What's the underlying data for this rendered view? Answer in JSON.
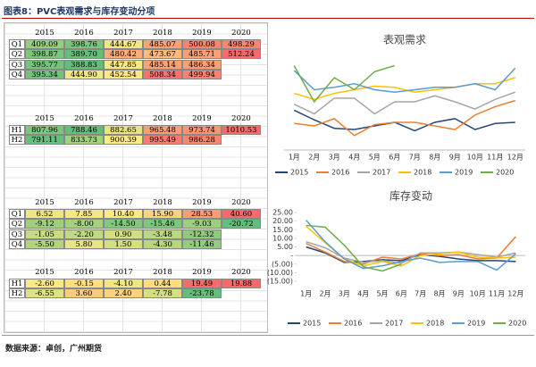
{
  "header": {
    "title": "图表8：PVC表观需求与库存变动分项"
  },
  "tables": [
    {
      "columns": [
        "2015",
        "2016",
        "2017",
        "2018",
        "2019",
        "2020"
      ],
      "rows": [
        {
          "label": "Q1",
          "cells": [
            "409.09",
            "398.76",
            "444.67",
            "485.07",
            "500.08",
            "498.29"
          ]
        },
        {
          "label": "Q2",
          "cells": [
            "398.87",
            "389.70",
            "480.42",
            "473.67",
            "485.71",
            "512.24"
          ]
        },
        {
          "label": "Q3",
          "cells": [
            "395.77",
            "388.83",
            "447.85",
            "485.14",
            "486.34"
          ]
        },
        {
          "label": "Q4",
          "cells": [
            "395.34",
            "444.90",
            "452.54",
            "508.34",
            "499.94"
          ]
        }
      ]
    },
    {
      "columns": [
        "2015",
        "2016",
        "2017",
        "2018",
        "2019",
        "2020"
      ],
      "rows": [
        {
          "label": "H1",
          "cells": [
            "807.96",
            "788.46",
            "882.65",
            "965.48",
            "973.74",
            "1010.53"
          ]
        },
        {
          "label": "H2",
          "cells": [
            "791.11",
            "833.73",
            "900.39",
            "995.49",
            "986.28"
          ]
        }
      ]
    },
    {
      "columns": [
        "2015",
        "2016",
        "2017",
        "2018",
        "2019",
        "2020"
      ],
      "rows": [
        {
          "label": "Q1",
          "cells": [
            "6.52",
            "7.85",
            "10.40",
            "15.90",
            "28.53",
            "40.60"
          ]
        },
        {
          "label": "Q2",
          "cells": [
            "-9.12",
            "-8.00",
            "-14.50",
            "-15.46",
            "-9.03",
            "-20.72"
          ]
        },
        {
          "label": "Q3",
          "cells": [
            "-1.05",
            "-2.20",
            "0.90",
            "-3.48",
            "-12.32"
          ]
        },
        {
          "label": "Q4",
          "cells": [
            "-5.50",
            "5.80",
            "1.50",
            "-4.30",
            "-11.46"
          ]
        }
      ]
    },
    {
      "columns": [
        "2015",
        "2016",
        "2017",
        "2018",
        "2019",
        "2020"
      ],
      "rows": [
        {
          "label": "H1",
          "cells": [
            "-2.60",
            "-0.15",
            "-4.10",
            "0.44",
            "19.49",
            "19.88"
          ]
        },
        {
          "label": "H2",
          "cells": [
            "-6.55",
            "3.60",
            "2.40",
            "-7.78",
            "-23.78"
          ]
        }
      ]
    }
  ],
  "chart_data": [
    {
      "type": "line",
      "title": "表观需求",
      "categories": [
        "1月",
        "2月",
        "3月",
        "4月",
        "5月",
        "6月",
        "7月",
        "8月",
        "9月",
        "10月",
        "11月",
        "12月"
      ],
      "ylim": [
        110,
        190
      ],
      "series": [
        {
          "name": "2015",
          "color": "#264478",
          "values": [
            143,
            135,
            128,
            127,
            130,
            133,
            126,
            133,
            136,
            127,
            132,
            133
          ]
        },
        {
          "name": "2016",
          "color": "#ed7d31",
          "values": [
            132,
            130,
            136,
            122,
            131,
            133,
            133,
            130,
            127,
            139,
            146,
            151
          ]
        },
        {
          "name": "2017",
          "color": "#a5a5a5",
          "values": [
            148,
            140,
            153,
            153,
            140,
            150,
            150,
            155,
            150,
            144,
            152,
            158
          ]
        },
        {
          "name": "2018",
          "color": "#ffc000",
          "values": [
            157,
            152,
            157,
            160,
            163,
            162,
            158,
            160,
            162,
            165,
            165,
            170
          ]
        },
        {
          "name": "2019",
          "color": "#5b9bd5",
          "values": [
            176,
            160,
            162,
            165,
            160,
            158,
            160,
            162,
            162,
            165,
            160,
            178
          ]
        },
        {
          "name": "2020",
          "color": "#70ad47",
          "values": [
            180,
            150,
            170,
            160,
            175,
            180,
            null,
            null,
            null,
            null,
            null,
            null
          ]
        }
      ]
    },
    {
      "type": "line",
      "title": "库存变动",
      "categories": [
        "1月",
        "2月",
        "3月",
        "4月",
        "5月",
        "6月",
        "7月",
        "8月",
        "9月",
        "10月",
        "11月",
        "12月"
      ],
      "ylim": [
        -15,
        25
      ],
      "yticks": [
        {
          "value": 25,
          "label": "25.00"
        },
        {
          "value": 20,
          "label": "20.00"
        },
        {
          "value": 15,
          "label": "15.00"
        },
        {
          "value": 10,
          "label": "10.00"
        },
        {
          "value": 5,
          "label": "5.00"
        },
        {
          "value": 0,
          "label": "-"
        },
        {
          "value": -5,
          "label": "(5.00)"
        },
        {
          "value": -10,
          "label": "(10.00)"
        },
        {
          "value": -15,
          "label": "(15.00)"
        }
      ],
      "series": [
        {
          "name": "2015",
          "color": "#264478",
          "values": [
            5,
            1.5,
            -4,
            -3.5,
            -2.5,
            -3,
            0.5,
            -0.5,
            -2,
            -3,
            -3,
            -3.5
          ]
        },
        {
          "name": "2016",
          "color": "#ed7d31",
          "values": [
            7,
            2,
            -3.5,
            -5,
            -1,
            -2,
            1,
            0,
            0.5,
            -2,
            -1.5,
            11
          ]
        },
        {
          "name": "2017",
          "color": "#a5a5a5",
          "values": [
            8,
            4.5,
            -1.5,
            -4,
            -3,
            -4.5,
            1.5,
            1.5,
            2,
            0.5,
            -1,
            1.5
          ]
        },
        {
          "name": "2018",
          "color": "#ffc000",
          "values": [
            17,
            7.5,
            -2,
            -6,
            -3.5,
            -6,
            0,
            1,
            2,
            -1,
            -1.5,
            -1
          ]
        },
        {
          "name": "2019",
          "color": "#5b9bd5",
          "values": [
            20.5,
            8,
            -2,
            -7.5,
            -6,
            -3.5,
            -1.5,
            -4,
            -3.5,
            -3.5,
            -8.5,
            1
          ]
        },
        {
          "name": "2020",
          "color": "#70ad47",
          "values": [
            17.5,
            16.5,
            6,
            -6.5,
            -9,
            -5,
            null,
            null,
            null,
            null,
            null,
            null
          ]
        }
      ]
    }
  ],
  "source": "数据来源：卓创，广州期货"
}
